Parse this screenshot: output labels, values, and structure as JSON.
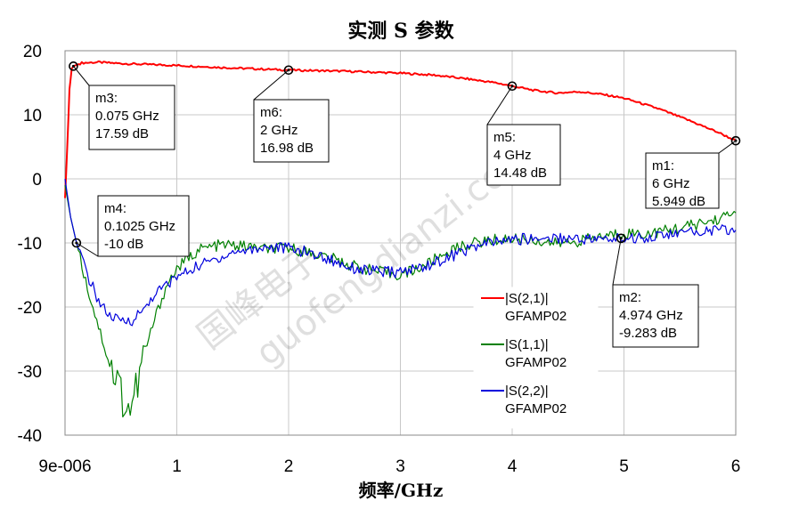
{
  "chart_data": {
    "type": "line",
    "title": "实测 S 参数",
    "xlabel": "频率/GHz",
    "ylabel": "",
    "xlim": [
      0,
      6
    ],
    "ylim": [
      -40,
      20
    ],
    "x_ticks": [
      "9e-006",
      "1",
      "2",
      "3",
      "4",
      "5",
      "6"
    ],
    "y_ticks": [
      "20",
      "10",
      "0",
      "-10",
      "-20",
      "-30",
      "-40"
    ],
    "grid": true,
    "legend_position": "bottom-right",
    "series": [
      {
        "name": "|S(2,1)|",
        "sub": "GFAMP02",
        "color": "#ff0000",
        "x": [
          0.0,
          0.02,
          0.04,
          0.06,
          0.075,
          0.15,
          0.3,
          0.5,
          1.0,
          1.5,
          2.0,
          2.5,
          3.0,
          3.3,
          3.6,
          3.85,
          4.0,
          4.2,
          4.4,
          4.6,
          4.8,
          5.0,
          5.3,
          5.6,
          5.85,
          6.0
        ],
        "y": [
          -3,
          5,
          14,
          17.2,
          17.59,
          18.1,
          18.2,
          18.0,
          17.7,
          17.3,
          16.98,
          16.8,
          16.5,
          16.2,
          15.6,
          15.0,
          14.48,
          13.8,
          13.4,
          13.6,
          13.2,
          12.6,
          11.0,
          9.0,
          7.2,
          5.949
        ]
      },
      {
        "name": "|S(1,1)|",
        "sub": "GFAMP02",
        "color": "#008000",
        "x": [
          0.0,
          0.05,
          0.1025,
          0.2,
          0.3,
          0.4,
          0.5,
          0.55,
          0.6,
          0.65,
          0.7,
          0.8,
          0.9,
          1.0,
          1.2,
          1.4,
          1.6,
          1.8,
          2.0,
          2.2,
          2.4,
          2.6,
          2.8,
          3.0,
          3.2,
          3.4,
          3.6,
          3.8,
          4.0,
          4.2,
          4.4,
          4.6,
          4.8,
          5.0,
          5.2,
          5.4,
          5.6,
          5.8,
          6.0
        ],
        "y": [
          -1,
          -6,
          -10,
          -17,
          -23,
          -29,
          -33,
          -36,
          -35,
          -32,
          -28,
          -22,
          -17,
          -14,
          -11,
          -10.3,
          -10.5,
          -11,
          -10.8,
          -11.5,
          -12.5,
          -13.7,
          -14.5,
          -15,
          -13.7,
          -11.6,
          -10.2,
          -9.6,
          -9.3,
          -9.6,
          -10.1,
          -9.7,
          -9.0,
          -8.4,
          -8.6,
          -8.0,
          -7.3,
          -6.5,
          -5.3
        ]
      },
      {
        "name": "|S(2,2)|",
        "sub": "GFAMP02",
        "color": "#0000dd",
        "x": [
          0.0,
          0.05,
          0.1025,
          0.2,
          0.3,
          0.4,
          0.5,
          0.6,
          0.7,
          0.8,
          1.0,
          1.2,
          1.5,
          1.8,
          2.0,
          2.2,
          2.4,
          2.6,
          2.8,
          3.0,
          3.2,
          3.4,
          3.6,
          3.8,
          4.0,
          4.2,
          4.4,
          4.6,
          4.8,
          4.974,
          5.2,
          5.4,
          5.6,
          5.8,
          6.0
        ],
        "y": [
          0,
          -6,
          -10,
          -15,
          -19,
          -21.5,
          -22.3,
          -22.0,
          -20.5,
          -18,
          -15.3,
          -13.5,
          -11.5,
          -10.6,
          -10.8,
          -11.6,
          -12.8,
          -14.0,
          -14.5,
          -14.6,
          -13.7,
          -12.5,
          -11,
          -10,
          -9.5,
          -9.3,
          -9.2,
          -9.3,
          -9.5,
          -9.283,
          -9.1,
          -8.7,
          -8.3,
          -8.0,
          -8.0
        ]
      }
    ],
    "markers": [
      {
        "id": "m1",
        "x": 6.0,
        "y": 5.949,
        "lines": [
          "m1:",
          "6 GHz",
          "5.949 dB"
        ]
      },
      {
        "id": "m2",
        "x": 4.974,
        "y": -9.283,
        "lines": [
          "m2:",
          "4.974 GHz",
          "-9.283 dB"
        ]
      },
      {
        "id": "m3",
        "x": 0.075,
        "y": 17.59,
        "lines": [
          "m3:",
          "0.075 GHz",
          "17.59 dB"
        ]
      },
      {
        "id": "m4",
        "x": 0.1025,
        "y": -10,
        "lines": [
          "m4:",
          "0.1025 GHz",
          "-10 dB"
        ]
      },
      {
        "id": "m5",
        "x": 4.0,
        "y": 14.48,
        "lines": [
          "m5:",
          "4 GHz",
          "14.48 dB"
        ]
      },
      {
        "id": "m6",
        "x": 2.0,
        "y": 16.98,
        "lines": [
          "m6:",
          "2 GHz",
          "16.98 dB"
        ]
      }
    ]
  },
  "watermark": {
    "line1": "国峰电子",
    "line2": "guofengdianzi.com"
  }
}
